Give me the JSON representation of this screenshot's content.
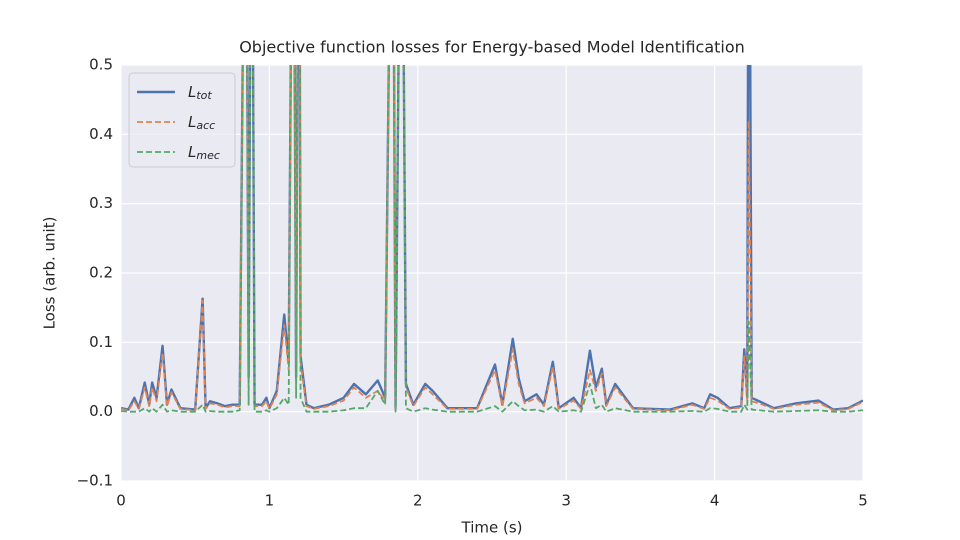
{
  "chart_data": {
    "type": "line",
    "title": "Objective function losses for Energy-based Model Identification",
    "x_label": "Time (s)",
    "y_label": "Loss (arb. unit)",
    "xlim": [
      0,
      5
    ],
    "ylim": [
      -0.1,
      0.5
    ],
    "xticks": [
      0,
      1,
      2,
      3,
      4,
      5
    ],
    "yticks": [
      {
        "value": -0.1,
        "label": "−0.1"
      },
      {
        "value": 0,
        "label": "0.0"
      },
      0.1,
      0.2,
      0.3,
      0.4,
      0.5
    ],
    "grid": true,
    "legend": "upper left",
    "x": [
      0,
      0.05,
      0.09,
      0.12,
      0.16,
      0.19,
      0.21,
      0.24,
      0.28,
      0.31,
      0.34,
      0.4,
      0.5,
      0.55,
      0.57,
      0.6,
      0.65,
      0.7,
      0.75,
      0.8,
      0.84,
      0.86,
      0.88,
      0.9,
      0.95,
      0.98,
      1.0,
      1.05,
      1.1,
      1.13,
      1.16,
      1.18,
      1.2,
      1.21,
      1.25,
      1.3,
      1.4,
      1.5,
      1.57,
      1.65,
      1.73,
      1.78,
      1.83,
      1.85,
      1.89,
      1.92,
      1.97,
      2.05,
      2.1,
      2.2,
      2.4,
      2.52,
      2.57,
      2.64,
      2.68,
      2.72,
      2.8,
      2.85,
      2.91,
      2.95,
      3.05,
      3.1,
      3.16,
      3.2,
      3.24,
      3.27,
      3.33,
      3.45,
      3.7,
      3.85,
      3.93,
      3.97,
      4.02,
      4.1,
      4.18,
      4.2,
      4.22,
      4.23,
      4.25,
      4.3,
      4.4,
      4.55,
      4.7,
      4.8,
      4.9,
      5.0
    ],
    "series": [
      {
        "name": "Ltot",
        "color": "#4c72b0",
        "linestyle": "solid",
        "values": [
          0.005,
          0.003,
          0.02,
          0.005,
          0.042,
          0.01,
          0.042,
          0.02,
          0.095,
          0.01,
          0.032,
          0.005,
          0.003,
          0.163,
          0.005,
          0.015,
          0.012,
          0.008,
          0.01,
          0.01,
          1.0,
          0.05,
          1.0,
          0.01,
          0.01,
          0.02,
          0.005,
          0.03,
          0.14,
          0.07,
          1.0,
          0.05,
          1.0,
          0.08,
          0.01,
          0.005,
          0.01,
          0.02,
          0.04,
          0.025,
          0.045,
          0.02,
          1.0,
          0.005,
          1.0,
          0.04,
          0.01,
          0.04,
          0.03,
          0.005,
          0.005,
          0.068,
          0.01,
          0.105,
          0.048,
          0.015,
          0.025,
          0.01,
          0.072,
          0.005,
          0.02,
          0.005,
          0.088,
          0.035,
          0.062,
          0.01,
          0.04,
          0.005,
          0.003,
          0.012,
          0.005,
          0.025,
          0.02,
          0.005,
          0.008,
          0.09,
          0.02,
          1.0,
          0.02,
          0.015,
          0.005,
          0.012,
          0.016,
          0.003,
          0.005,
          0.016
        ]
      },
      {
        "name": "Lacc",
        "color": "#dd8452",
        "linestyle": "dashed",
        "values": [
          0.004,
          0.002,
          0.015,
          0.004,
          0.035,
          0.008,
          0.035,
          0.015,
          0.085,
          0.008,
          0.028,
          0.004,
          0.002,
          0.16,
          0.004,
          0.012,
          0.01,
          0.006,
          0.008,
          0.008,
          1.0,
          0.04,
          1.0,
          0.008,
          0.008,
          0.015,
          0.004,
          0.025,
          0.125,
          0.06,
          1.0,
          0.04,
          1.0,
          0.07,
          0.008,
          0.004,
          0.008,
          0.016,
          0.035,
          0.02,
          0.03,
          0.015,
          1.0,
          0.004,
          1.0,
          0.035,
          0.008,
          0.035,
          0.025,
          0.004,
          0.004,
          0.06,
          0.008,
          0.09,
          0.04,
          0.012,
          0.02,
          0.008,
          0.065,
          0.004,
          0.016,
          0.004,
          0.06,
          0.03,
          0.055,
          0.008,
          0.035,
          0.004,
          0.002,
          0.01,
          0.004,
          0.02,
          0.016,
          0.004,
          0.006,
          0.08,
          0.015,
          0.42,
          0.015,
          0.012,
          0.004,
          0.01,
          0.013,
          0.002,
          0.004,
          0.014
        ]
      },
      {
        "name": "Lmec",
        "color": "#55a868",
        "linestyle": "dashed",
        "values": [
          0.001,
          0,
          0,
          0,
          0.005,
          0,
          0.005,
          0,
          0.01,
          0,
          0.002,
          0,
          0,
          0.01,
          0,
          0.001,
          0,
          0,
          0,
          0.002,
          1.0,
          0.01,
          1.0,
          0,
          0,
          0.002,
          0,
          0.005,
          0.02,
          0.01,
          1.0,
          0.02,
          1.0,
          0.02,
          0,
          0,
          0,
          0.002,
          0.005,
          0.005,
          0.03,
          0.01,
          1.0,
          0,
          1.0,
          0.005,
          0,
          0.005,
          0.003,
          0,
          0,
          0.008,
          0,
          0.015,
          0.008,
          0.002,
          0.003,
          0,
          0.008,
          0,
          0.002,
          0,
          0.04,
          0.005,
          0.01,
          0,
          0.005,
          0,
          0,
          0.001,
          0,
          0.005,
          0.004,
          0,
          0,
          0.01,
          0.003,
          0.13,
          0.003,
          0.002,
          0,
          0.001,
          0.002,
          0,
          0,
          0.002
        ]
      }
    ]
  }
}
